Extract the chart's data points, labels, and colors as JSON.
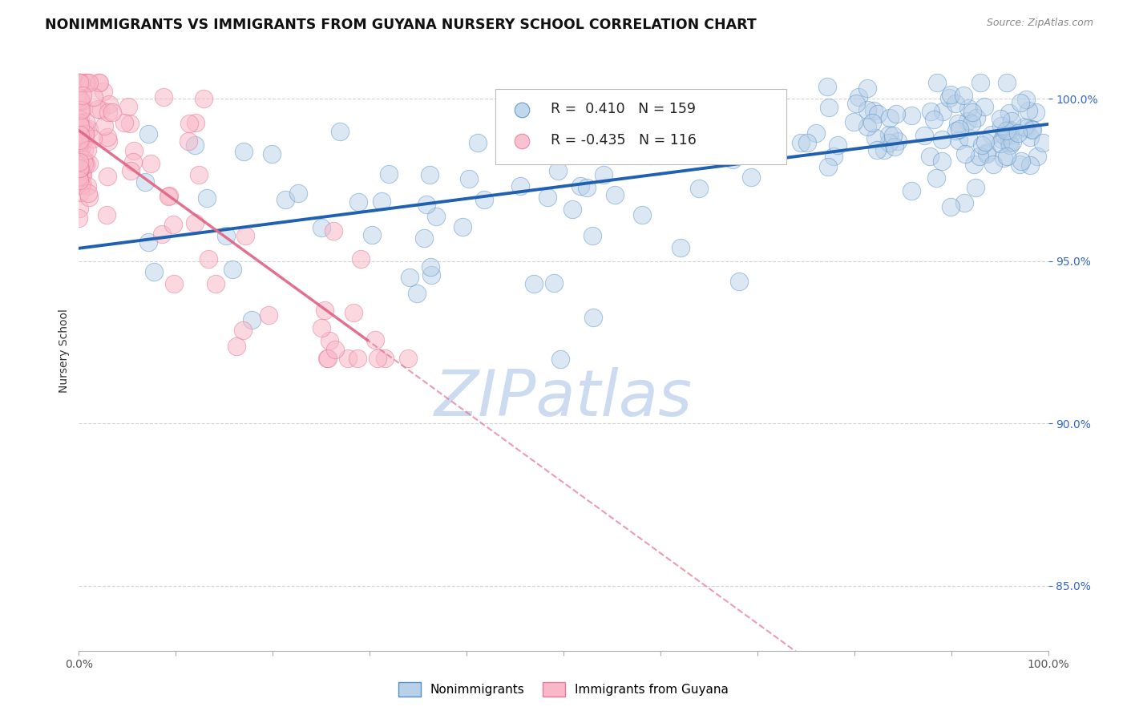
{
  "title": "NONIMMIGRANTS VS IMMIGRANTS FROM GUYANA NURSERY SCHOOL CORRELATION CHART",
  "source": "Source: ZipAtlas.com",
  "ylabel": "Nursery School",
  "x_min": 0.0,
  "x_max": 1.0,
  "y_min": 0.83,
  "y_max": 1.015,
  "x_tick_positions": [
    0.0,
    0.1,
    0.2,
    0.3,
    0.4,
    0.5,
    0.6,
    0.7,
    0.8,
    0.9,
    1.0
  ],
  "x_tick_labels": [
    "0.0%",
    "",
    "",
    "",
    "",
    "",
    "",
    "",
    "",
    "",
    "100.0%"
  ],
  "y_ticks": [
    0.85,
    0.9,
    0.95,
    1.0
  ],
  "y_tick_labels": [
    "85.0%",
    "90.0%",
    "95.0%",
    "100.0%"
  ],
  "R_blue": 0.41,
  "N_blue": 159,
  "R_pink": -0.435,
  "N_pink": 116,
  "blue_fill": "#b8d0e8",
  "blue_edge": "#5590c8",
  "pink_fill": "#f8b8c8",
  "pink_edge": "#e87898",
  "blue_line_color": "#2060b0",
  "pink_line_color": "#e06888",
  "grid_color": "#d0d0d0",
  "watermark": "ZIPatlas",
  "watermark_color": "#c8d8f0",
  "legend_label_blue": "Nonimmigrants",
  "legend_label_pink": "Immigrants from Guyana",
  "background_color": "#ffffff",
  "title_color": "#111111",
  "source_color": "#888888",
  "ylabel_color": "#333333",
  "ytick_color": "#3366cc",
  "xtick_color": "#555555"
}
